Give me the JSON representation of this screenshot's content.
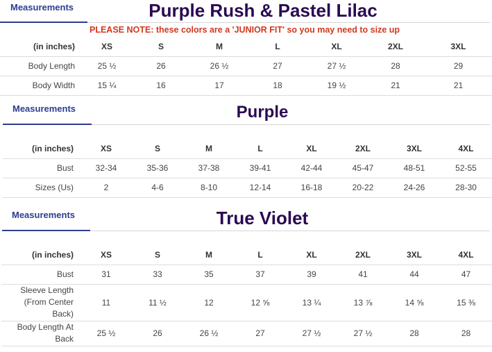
{
  "sections": [
    {
      "tab": "Measurements",
      "title": "Purple Rush & Pastel Lilac",
      "note": "PLEASE NOTE: these colors are a 'JUNIOR FIT' so you may need to size up",
      "columns": [
        "(in inches)",
        "XS",
        "S",
        "M",
        "L",
        "XL",
        "2XL",
        "3XL"
      ],
      "rows": [
        {
          "label": "Body Length",
          "values": [
            "25 ½",
            "26",
            "26 ½",
            "27",
            "27 ½",
            "28",
            "29"
          ]
        },
        {
          "label": "Body Width",
          "values": [
            "15 ¼",
            "16",
            "17",
            "18",
            "19 ½",
            "21",
            "21"
          ]
        }
      ]
    },
    {
      "tab": "Measurements",
      "title": "Purple",
      "columns": [
        "(in inches)",
        "XS",
        "S",
        "M",
        "L",
        "XL",
        "2XL",
        "3XL",
        "4XL"
      ],
      "rows": [
        {
          "label": "Bust",
          "values": [
            "32-34",
            "35-36",
            "37-38",
            "39-41",
            "42-44",
            "45-47",
            "48-51",
            "52-55"
          ]
        },
        {
          "label": "Sizes (Us)",
          "values": [
            "2",
            "4-6",
            "8-10",
            "12-14",
            "16-18",
            "20-22",
            "24-26",
            "28-30"
          ]
        }
      ]
    },
    {
      "tab": "Measurements",
      "title": "True Violet",
      "columns": [
        "(in inches)",
        "XS",
        "S",
        "M",
        "L",
        "XL",
        "2XL",
        "3XL",
        "4XL"
      ],
      "rows": [
        {
          "label": "Bust",
          "values": [
            "31",
            "33",
            "35",
            "37",
            "39",
            "41",
            "44",
            "47"
          ]
        },
        {
          "label": "Sleeve Length (From Center Back)",
          "values": [
            "11",
            "11 ½",
            "12",
            "12 ⅝",
            "13 ¼",
            "13 ⅞",
            "14 ⅝",
            "15 ⅜"
          ]
        },
        {
          "label": "Body Length At Back",
          "values": [
            "25 ½",
            "26",
            "26 ½",
            "27",
            "27 ½",
            "27 ½",
            "28",
            "28"
          ]
        }
      ]
    }
  ],
  "colors": {
    "tab": "#2c3d8f",
    "title": "#2a0a52",
    "note": "#d2381e"
  }
}
